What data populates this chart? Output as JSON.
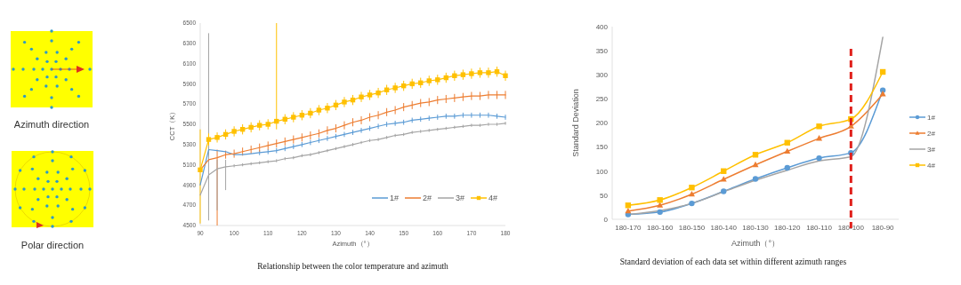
{
  "chart_data": [
    {
      "type": "other",
      "annotations": [
        "Azimuth direction",
        "Polar direction"
      ]
    },
    {
      "type": "line",
      "xlabel": "Azimuth（°）",
      "ylabel": "CCT（K）",
      "annotations": [
        "Relationship between the color temperature and azimuth"
      ],
      "x": [
        90,
        92.5,
        95,
        97.5,
        100,
        102.5,
        105,
        107.5,
        110,
        112.5,
        115,
        117.5,
        120,
        122.5,
        125,
        127.5,
        130,
        132.5,
        135,
        137.5,
        140,
        142.5,
        145,
        147.5,
        150,
        152.5,
        155,
        157.5,
        160,
        162.5,
        165,
        167.5,
        170,
        172.5,
        175,
        177.5,
        180
      ],
      "xlim": [
        90,
        180
      ],
      "xticks": [
        90,
        100,
        110,
        120,
        130,
        140,
        150,
        160,
        170,
        180
      ],
      "ylim": [
        4500,
        6500
      ],
      "yticks": [
        4500,
        4700,
        4900,
        5100,
        5300,
        5500,
        5700,
        5900,
        6100,
        6300,
        6500
      ],
      "legend": "bottom right",
      "series": [
        {
          "name": "1#",
          "color": "#5b9bd5",
          "marker": "none",
          "values": [
            4900,
            5250,
            5240,
            5230,
            5200,
            5200,
            5210,
            5220,
            5230,
            5240,
            5260,
            5280,
            5300,
            5320,
            5340,
            5360,
            5380,
            5400,
            5420,
            5440,
            5460,
            5480,
            5500,
            5510,
            5520,
            5540,
            5550,
            5560,
            5570,
            5580,
            5580,
            5590,
            5590,
            5590,
            5590,
            5580,
            5570
          ],
          "errors": [
            null,
            60,
            null,
            null,
            null,
            null,
            null,
            25,
            25,
            25,
            25,
            25,
            25,
            25,
            25,
            25,
            25,
            25,
            25,
            25,
            25,
            25,
            25,
            25,
            25,
            25,
            25,
            25,
            25,
            25,
            25,
            25,
            25,
            25,
            25,
            25,
            25
          ]
        },
        {
          "name": "2#",
          "color": "#ed7d31",
          "marker": "none",
          "values": [
            5050,
            5150,
            5170,
            5200,
            5210,
            5230,
            5250,
            5270,
            5290,
            5310,
            5330,
            5350,
            5370,
            5390,
            5410,
            5440,
            5460,
            5490,
            5520,
            5540,
            5570,
            5590,
            5620,
            5640,
            5670,
            5690,
            5710,
            5720,
            5740,
            5750,
            5760,
            5770,
            5780,
            5780,
            5790,
            5790,
            5790
          ],
          "errors": [
            null,
            null,
            [
              4500,
              5250
            ],
            40,
            40,
            40,
            40,
            40,
            40,
            40,
            40,
            40,
            40,
            40,
            40,
            40,
            40,
            40,
            40,
            40,
            40,
            40,
            40,
            40,
            40,
            40,
            40,
            40,
            40,
            40,
            40,
            40,
            40,
            40,
            40,
            40,
            40
          ]
        },
        {
          "name": "3#",
          "color": "#a5a5a5",
          "marker": "none",
          "values": [
            4800,
            5000,
            5060,
            5080,
            5090,
            5100,
            5110,
            5120,
            5130,
            5140,
            5160,
            5170,
            5190,
            5200,
            5220,
            5240,
            5260,
            5280,
            5300,
            5320,
            5340,
            5350,
            5370,
            5390,
            5400,
            5420,
            5430,
            5440,
            5450,
            5460,
            5470,
            5480,
            5490,
            5490,
            5500,
            5500,
            5510
          ],
          "errors": [
            null,
            [
              4550,
              6400
            ],
            [
              4650,
              5150
            ],
            [
              4850,
              5150
            ],
            15,
            15,
            15,
            15,
            15,
            15,
            15,
            15,
            15,
            15,
            15,
            15,
            15,
            15,
            15,
            15,
            15,
            15,
            15,
            15,
            15,
            15,
            15,
            15,
            15,
            15,
            15,
            15,
            15,
            15,
            15,
            15,
            15
          ]
        },
        {
          "name": "4#",
          "color": "#ffc000",
          "marker": "square",
          "values": [
            5050,
            5350,
            5370,
            5400,
            5430,
            5450,
            5470,
            5490,
            5500,
            5530,
            5550,
            5570,
            5590,
            5610,
            5640,
            5660,
            5690,
            5720,
            5740,
            5770,
            5790,
            5810,
            5840,
            5860,
            5880,
            5900,
            5910,
            5930,
            5940,
            5960,
            5980,
            5990,
            6000,
            6010,
            6010,
            6020,
            5980
          ],
          "errors": [
            [
              4520,
              5450
            ],
            60,
            50,
            50,
            50,
            50,
            50,
            50,
            50,
            [
              5450,
              6500
            ],
            50,
            50,
            50,
            50,
            50,
            50,
            50,
            50,
            50,
            50,
            50,
            50,
            50,
            50,
            50,
            50,
            50,
            50,
            50,
            50,
            50,
            50,
            50,
            50,
            50,
            50,
            50
          ]
        }
      ]
    },
    {
      "type": "line",
      "xlabel": "Azimuth（°）",
      "ylabel": "Standard Deviation",
      "annotations": [
        "Standard deviation of each data set within different azimuth ranges"
      ],
      "categories": [
        "180-170",
        "180-160",
        "180-150",
        "180-140",
        "180-130",
        "180-120",
        "180-110",
        "180-100",
        "180-90"
      ],
      "ylim": [
        0,
        400
      ],
      "yticks": [
        0,
        50,
        100,
        150,
        200,
        250,
        300,
        350,
        400
      ],
      "legend": "right",
      "ref_lines": [
        {
          "axis": "x",
          "value": "180-100",
          "color": "#e0201b",
          "line_style": "dashed"
        }
      ],
      "series": [
        {
          "name": "1#",
          "color": "#5b9bd5",
          "marker": "circle",
          "values": [
            10,
            15,
            33,
            58,
            84,
            107,
            127,
            138,
            268
          ]
        },
        {
          "name": "2#",
          "color": "#ed7d31",
          "marker": "triangle",
          "values": [
            17,
            29,
            52,
            83,
            113,
            141,
            168,
            193,
            260
          ]
        },
        {
          "name": "3#",
          "color": "#a5a5a5",
          "marker": "none",
          "values": [
            10,
            18,
            33,
            57,
            81,
            102,
            121,
            130,
            378
          ]
        },
        {
          "name": "4#",
          "color": "#ffc000",
          "marker": "square",
          "values": [
            29,
            40,
            66,
            100,
            134,
            159,
            193,
            208,
            306
          ]
        }
      ]
    }
  ]
}
